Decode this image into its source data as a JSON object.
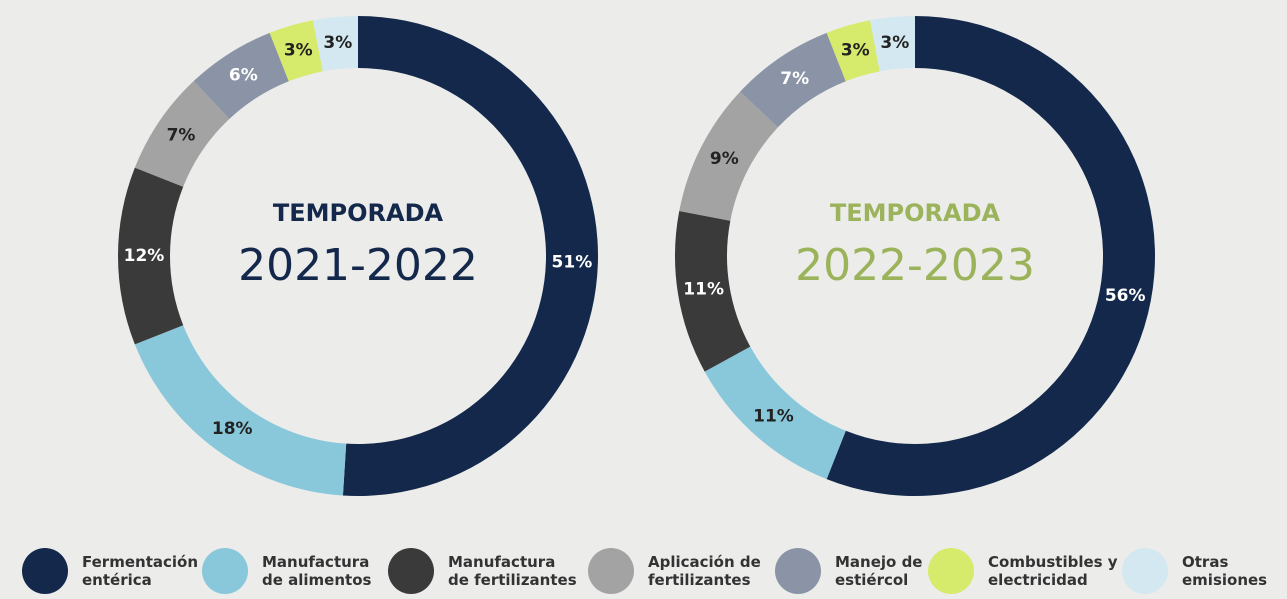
{
  "chart_data": [
    {
      "type": "donut",
      "title": "TEMPORADA",
      "subtitle": "2021-2022",
      "title_color": "#13284b",
      "categories": [
        "Fermentación entérica",
        "Manufactura de alimentos",
        "Manufactura de fertilizantes",
        "Aplicación de fertilizantes",
        "Manejo de estiércol",
        "Combustibles y electricidad",
        "Otras emisiones"
      ],
      "values": [
        51,
        18,
        12,
        7,
        6,
        3,
        3
      ],
      "value_labels": [
        "51%",
        "18%",
        "12%",
        "7%",
        "6%",
        "3%",
        "3%"
      ],
      "colors": [
        "#13284b",
        "#89c8da",
        "#3a3a3a",
        "#a3a3a3",
        "#8a94a6",
        "#d6ea6b",
        "#d3e8f0"
      ]
    },
    {
      "type": "donut",
      "title": "TEMPORADA",
      "subtitle": "2022-2023",
      "title_color": "#9bb35a",
      "categories": [
        "Fermentación entérica",
        "Manufactura de alimentos",
        "Manufactura de fertilizantes",
        "Aplicación de fertilizantes",
        "Manejo de estiércol",
        "Combustibles y electricidad",
        "Otras emisiones"
      ],
      "values": [
        56,
        11,
        11,
        9,
        7,
        3,
        3
      ],
      "value_labels": [
        "56%",
        "11%",
        "11%",
        "9%",
        "7%",
        "3%",
        "3%"
      ],
      "colors": [
        "#13284b",
        "#89c8da",
        "#3a3a3a",
        "#a3a3a3",
        "#8a94a6",
        "#d6ea6b",
        "#d3e8f0"
      ]
    }
  ]
}
